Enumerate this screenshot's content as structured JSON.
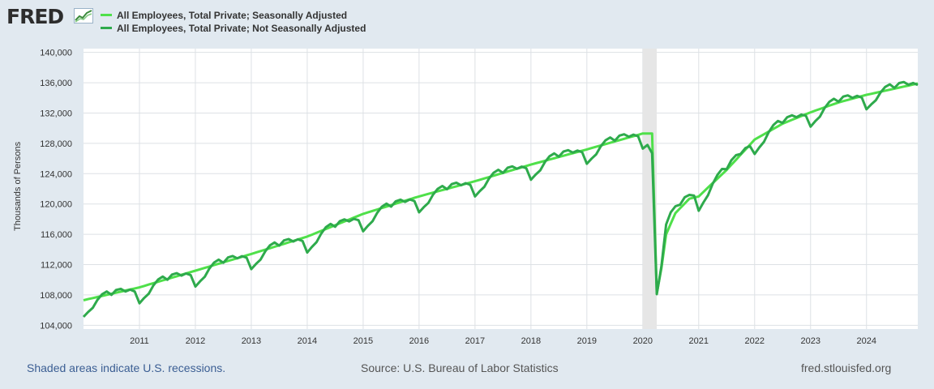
{
  "logo": {
    "text": "FRED",
    "mark": "fred-graph-mark"
  },
  "colors": {
    "background": "#e1e9f0",
    "plot": "#ffffff",
    "grid": "#dde1e5",
    "recession": "#e6e6e6",
    "sa": "#4fe04a",
    "nsa": "#2eaa4c",
    "note": "#3b5e93"
  },
  "legend": [
    {
      "label": "All Employees, Total Private; Seasonally Adjusted"
    },
    {
      "label": "All Employees, Total Private; Not Seasonally Adjusted"
    }
  ],
  "footer": {
    "note": "Shaded areas indicate U.S. recessions.",
    "source": "Source: U.S. Bureau of Labor Statistics",
    "site": "fred.stlouisfed.org"
  },
  "chart_data": {
    "type": "line",
    "title": "",
    "xlabel": "",
    "ylabel": "Thousands of Persons",
    "xlim": [
      2010.0,
      2024.917
    ],
    "ylim": [
      103500,
      140500
    ],
    "y_ticks": [
      104000,
      108000,
      112000,
      116000,
      120000,
      124000,
      128000,
      132000,
      136000,
      140000
    ],
    "y_tick_labels": [
      "104,000",
      "108,000",
      "112,000",
      "116,000",
      "120,000",
      "124,000",
      "128,000",
      "132,000",
      "136,000",
      "140,000"
    ],
    "x_ticks": [
      "2011",
      "2012",
      "2013",
      "2014",
      "2015",
      "2016",
      "2017",
      "2018",
      "2019",
      "2020",
      "2021",
      "2022",
      "2023",
      "2024"
    ],
    "recessions": [
      [
        2020.0,
        2020.25
      ]
    ],
    "series": [
      {
        "name": "All Employees, Total Private; Seasonally Adjusted",
        "anchors": [
          [
            2010.0,
            107300
          ],
          [
            2011.0,
            109000
          ],
          [
            2012.0,
            111200
          ],
          [
            2013.0,
            113400
          ],
          [
            2014.0,
            115700
          ],
          [
            2015.0,
            118700
          ],
          [
            2016.0,
            121000
          ],
          [
            2017.0,
            123000
          ],
          [
            2018.0,
            125200
          ],
          [
            2019.0,
            127200
          ],
          [
            2020.0,
            129300
          ],
          [
            2020.167,
            129300
          ],
          [
            2020.25,
            108200
          ],
          [
            2020.333,
            111500
          ],
          [
            2020.417,
            116000
          ],
          [
            2020.583,
            118800
          ],
          [
            2020.833,
            120700
          ],
          [
            2021.0,
            121000
          ],
          [
            2021.5,
            124500
          ],
          [
            2022.0,
            128500
          ],
          [
            2022.5,
            130600
          ],
          [
            2023.0,
            132100
          ],
          [
            2023.5,
            133400
          ],
          [
            2024.0,
            134400
          ],
          [
            2024.917,
            135900
          ]
        ]
      },
      {
        "name": "All Employees, Total Private; Not Seasonally Adjusted",
        "base": [
          [
            2010.0,
            107000
          ],
          [
            2011.0,
            108800
          ],
          [
            2012.0,
            111000
          ],
          [
            2013.0,
            113300
          ],
          [
            2014.0,
            115500
          ],
          [
            2015.0,
            118300
          ],
          [
            2016.0,
            120800
          ],
          [
            2017.0,
            122900
          ],
          [
            2018.0,
            125100
          ],
          [
            2019.0,
            127200
          ],
          [
            2020.0,
            129300
          ]
        ],
        "base_post": [
          [
            2021.0,
            121000
          ],
          [
            2021.5,
            124500
          ],
          [
            2022.0,
            128500
          ],
          [
            2022.5,
            130600
          ],
          [
            2023.0,
            132100
          ],
          [
            2023.5,
            133400
          ],
          [
            2024.0,
            134400
          ],
          [
            2024.917,
            135900
          ]
        ],
        "seasonal": [
          -1900,
          -1400,
          -1000,
          -100,
          500,
          700,
          100,
          600,
          600,
          100,
          200,
          -200
        ],
        "covid": [
          [
            2020.0,
            127300
          ],
          [
            2020.083,
            127800
          ],
          [
            2020.167,
            126700
          ],
          [
            2020.25,
            108100
          ],
          [
            2020.333,
            111800
          ],
          [
            2020.417,
            117300
          ],
          [
            2020.5,
            118900
          ],
          [
            2020.583,
            119700
          ],
          [
            2020.667,
            119900
          ],
          [
            2020.75,
            120900
          ],
          [
            2020.833,
            121200
          ],
          [
            2020.917,
            121100
          ]
        ]
      }
    ]
  }
}
